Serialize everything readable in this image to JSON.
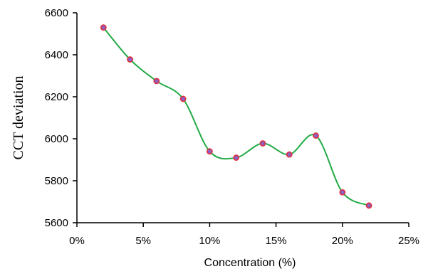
{
  "chart_data": {
    "type": "line",
    "title": "",
    "xlabel": "Concentration (%)",
    "ylabel": "CCT deviation",
    "xlim": [
      0,
      25
    ],
    "ylim": [
      5600,
      6600
    ],
    "x_ticks": [
      0,
      5,
      10,
      15,
      20,
      25
    ],
    "x_tick_labels": [
      "0%",
      "5%",
      "10%",
      "15%",
      "20%",
      "25%"
    ],
    "y_ticks": [
      5600,
      5800,
      6000,
      6200,
      6400,
      6600
    ],
    "y_tick_labels": [
      "5600",
      "5800",
      "6000",
      "6200",
      "6400",
      "6600"
    ],
    "grid": false,
    "legend": "none",
    "smooth": true,
    "series": [
      {
        "x": [
          2,
          4,
          6,
          8,
          10,
          12,
          14,
          16,
          18,
          20,
          22
        ],
        "y": [
          6530,
          6378,
          6275,
          6190,
          5940,
          5910,
          5978,
          5925,
          6015,
          5745,
          5682
        ]
      }
    ],
    "colors": {
      "line": "#22aa44",
      "marker_fill": "#8e5fc2",
      "marker_stroke": "#e0303a",
      "axis": "#000000"
    }
  }
}
